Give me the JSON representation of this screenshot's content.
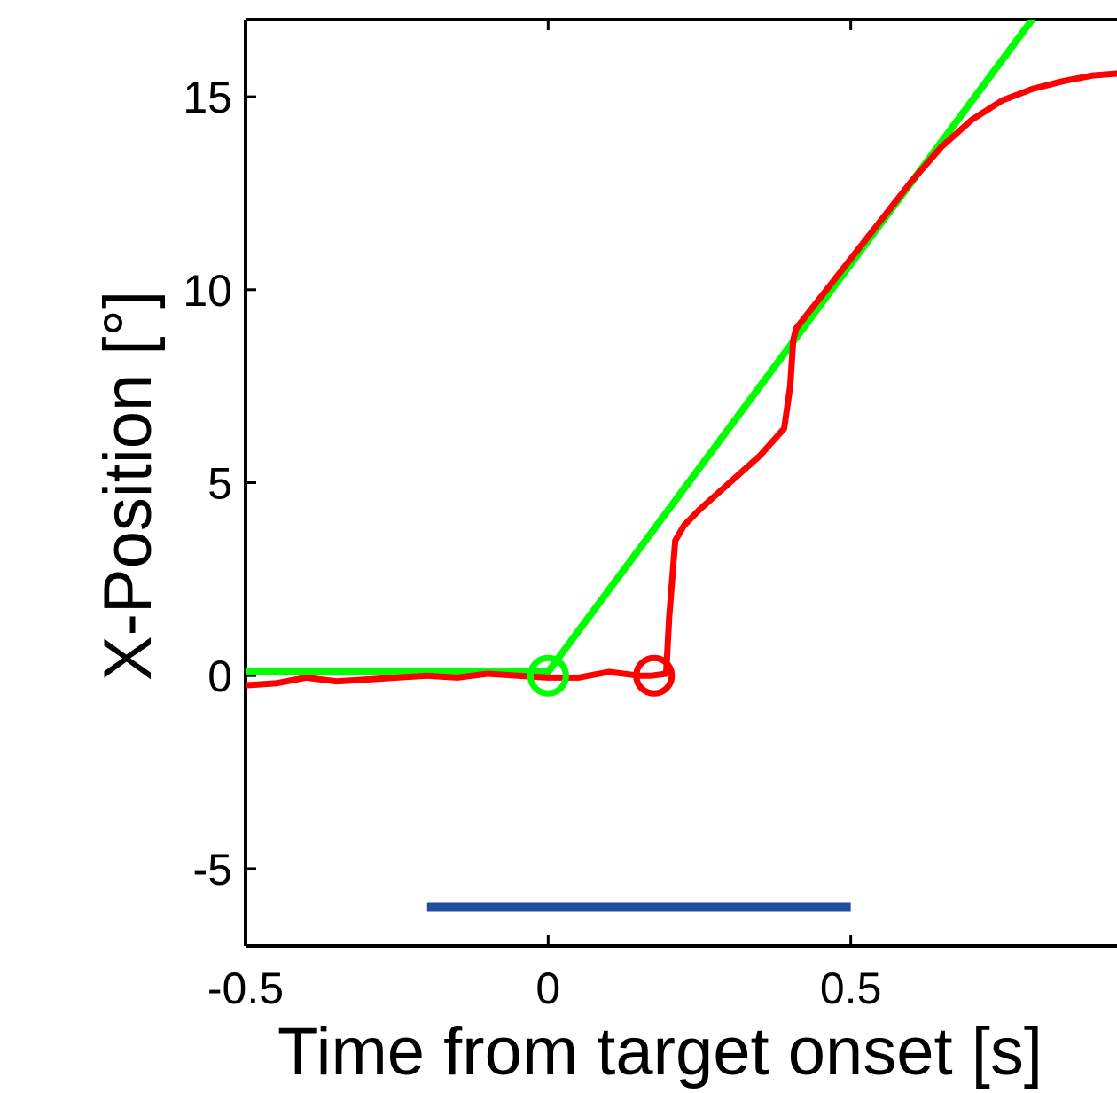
{
  "chart_data": {
    "type": "line",
    "title": "",
    "xlabel": "Time from target onset [s]",
    "ylabel": "X-Position [°]",
    "xlim": [
      -0.5,
      0.94
    ],
    "ylim": [
      -7,
      17
    ],
    "x_ticks": [
      -0.5,
      0,
      0.5
    ],
    "x_tick_labels": [
      "-0.5",
      "0",
      "0.5"
    ],
    "y_ticks": [
      -5,
      0,
      5,
      10,
      15
    ],
    "y_tick_labels": [
      "-5",
      "0",
      "5",
      "10",
      "15"
    ],
    "grid": false,
    "colors": {
      "target": "#00ff00",
      "eye": "#ff0000",
      "bar": "#1f4e9c"
    },
    "series": [
      {
        "key": "target",
        "points": [
          [
            -0.5,
            0.1
          ],
          [
            0.0,
            0.1
          ],
          [
            0.8,
            17.0
          ]
        ]
      },
      {
        "key": "eye",
        "points": [
          [
            -0.5,
            -0.25
          ],
          [
            -0.45,
            -0.2
          ],
          [
            -0.4,
            -0.05
          ],
          [
            -0.35,
            -0.15
          ],
          [
            -0.3,
            -0.1
          ],
          [
            -0.25,
            -0.05
          ],
          [
            -0.2,
            0.0
          ],
          [
            -0.15,
            -0.05
          ],
          [
            -0.1,
            0.05
          ],
          [
            -0.05,
            0.0
          ],
          [
            0.0,
            -0.05
          ],
          [
            0.05,
            -0.05
          ],
          [
            0.1,
            0.1
          ],
          [
            0.15,
            0.0
          ],
          [
            0.17,
            0.0
          ],
          [
            0.195,
            0.05
          ],
          [
            0.2,
            1.5
          ],
          [
            0.21,
            3.5
          ],
          [
            0.225,
            3.9
          ],
          [
            0.25,
            4.3
          ],
          [
            0.3,
            5.0
          ],
          [
            0.35,
            5.7
          ],
          [
            0.39,
            6.4
          ],
          [
            0.4,
            7.5
          ],
          [
            0.405,
            8.7
          ],
          [
            0.41,
            9.0
          ],
          [
            0.45,
            9.8
          ],
          [
            0.5,
            10.8
          ],
          [
            0.55,
            11.8
          ],
          [
            0.6,
            12.8
          ],
          [
            0.65,
            13.7
          ],
          [
            0.7,
            14.4
          ],
          [
            0.75,
            14.9
          ],
          [
            0.8,
            15.2
          ],
          [
            0.85,
            15.4
          ],
          [
            0.9,
            15.55
          ],
          [
            0.94,
            15.6
          ]
        ]
      }
    ],
    "markers": [
      {
        "key": "target-onset",
        "x": 0.0,
        "y": 0.0,
        "shape": "circle-open",
        "color": "#00ff00"
      },
      {
        "key": "saccade-onset",
        "x": 0.175,
        "y": 0.0,
        "shape": "circle-open",
        "color": "#ff0000"
      }
    ],
    "interval_bar": {
      "x_start": -0.2,
      "x_end": 0.5,
      "y": -6.0,
      "color": "#1f4e9c"
    }
  }
}
